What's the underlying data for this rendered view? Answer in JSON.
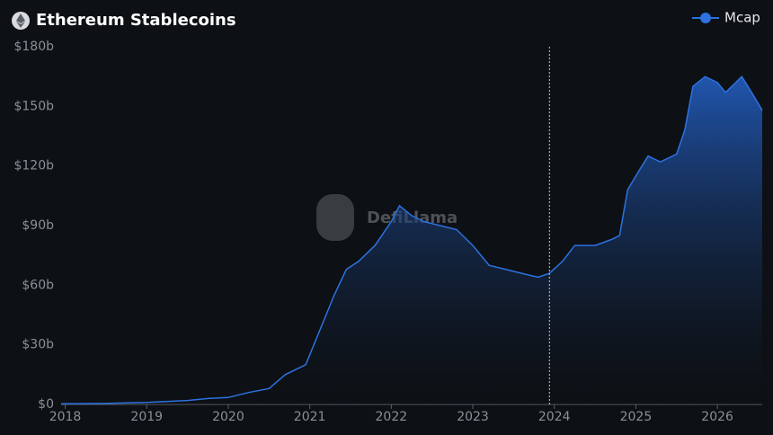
{
  "chart_data": {
    "type": "area",
    "title": "Ethereum Stablecoins",
    "watermark": "DefiLlama",
    "x": [
      2017.95,
      2018.5,
      2019.0,
      2019.5,
      2019.75,
      2020.0,
      2020.25,
      2020.5,
      2020.7,
      2020.95,
      2021.1,
      2021.3,
      2021.45,
      2021.6,
      2021.8,
      2022.0,
      2022.1,
      2022.25,
      2022.4,
      2022.6,
      2022.8,
      2023.0,
      2023.2,
      2023.4,
      2023.6,
      2023.8,
      2023.94,
      2024.1,
      2024.25,
      2024.5,
      2024.7,
      2024.8,
      2024.9,
      2025.0,
      2025.15,
      2025.3,
      2025.5,
      2025.6,
      2025.7,
      2025.85,
      2026.0,
      2026.1,
      2026.3,
      2026.45,
      2026.55
    ],
    "series": [
      {
        "name": "Mcap",
        "color": "#2c72e0",
        "values": [
          0.3,
          0.5,
          1,
          2,
          3,
          3.5,
          6,
          8,
          15,
          20,
          35,
          55,
          68,
          72,
          80,
          92,
          100,
          95,
          92,
          90,
          88,
          80,
          70,
          68,
          66,
          64,
          66,
          72,
          80,
          80,
          83,
          85,
          108,
          115,
          125,
          122,
          126,
          138,
          160,
          165,
          162,
          157,
          165,
          155,
          148
        ]
      }
    ],
    "xlim": [
      2017.95,
      2026.55
    ],
    "xticks": [
      2018,
      2019,
      2020,
      2021,
      2022,
      2023,
      2024,
      2025,
      2026
    ],
    "ylim": [
      0,
      180
    ],
    "yticks": [
      {
        "value": 0,
        "label": "$0"
      },
      {
        "value": 30,
        "label": "$30b"
      },
      {
        "value": 60,
        "label": "$60b"
      },
      {
        "value": 90,
        "label": "$90b"
      },
      {
        "value": 120,
        "label": "$120b"
      },
      {
        "value": 150,
        "label": "$150b"
      },
      {
        "value": 180,
        "label": "$180b"
      }
    ],
    "vline": 2023.94,
    "legend": "top-right"
  }
}
